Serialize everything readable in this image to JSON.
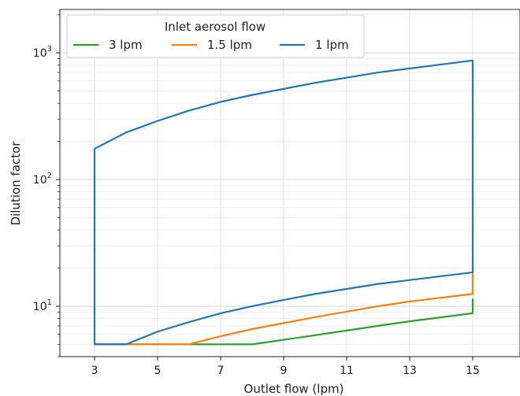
{
  "chart_data": {
    "type": "line",
    "title": "",
    "xlabel": "Outlet flow (lpm)",
    "ylabel": "Dilution factor",
    "xlim": [
      1.9,
      16.5
    ],
    "ylim": [
      4.0,
      2200
    ],
    "yscale": "log",
    "grid": true,
    "x_ticks": [
      3,
      5,
      7,
      9,
      11,
      13,
      15
    ],
    "y_ticks": [
      {
        "value": 10,
        "base": "10",
        "exp": "1"
      },
      {
        "value": 100,
        "base": "10",
        "exp": "2"
      },
      {
        "value": 1000,
        "base": "10",
        "exp": "3"
      }
    ],
    "legend": {
      "title": "Inlet aerosol flow",
      "placement": "top-left"
    },
    "series": [
      {
        "name": "3 lpm",
        "color": "#2ca02c",
        "polygon": [
          [
            3,
            5
          ],
          [
            4,
            5
          ],
          [
            5,
            5
          ],
          [
            6,
            5
          ],
          [
            7,
            5
          ],
          [
            8,
            5
          ],
          [
            10,
            5.9
          ],
          [
            12,
            7.0
          ],
          [
            13,
            7.6
          ],
          [
            15,
            8.8
          ],
          [
            15,
            11.5
          ]
        ]
      },
      {
        "name": "1.5 lpm",
        "color": "#ff7f0e",
        "polygon": [
          [
            3,
            5
          ],
          [
            4,
            5
          ],
          [
            5,
            5
          ],
          [
            6,
            5
          ],
          [
            7,
            5.8
          ],
          [
            8,
            6.6
          ],
          [
            10,
            8.2
          ],
          [
            12,
            10.0
          ],
          [
            13,
            10.9
          ],
          [
            15,
            12.5
          ],
          [
            15,
            18.5
          ]
        ]
      },
      {
        "name": "1 lpm",
        "color": "#1f77b4",
        "polygon": [
          [
            3,
            175
          ],
          [
            4,
            235
          ],
          [
            5,
            290
          ],
          [
            6,
            350
          ],
          [
            7,
            410
          ],
          [
            8,
            465
          ],
          [
            10,
            580
          ],
          [
            12,
            700
          ],
          [
            15,
            870
          ],
          [
            15,
            18.5
          ],
          [
            12,
            15.0
          ],
          [
            10,
            12.5
          ],
          [
            9,
            11.2
          ],
          [
            8,
            10.0
          ],
          [
            7,
            8.8
          ],
          [
            6,
            7.5
          ],
          [
            5,
            6.3
          ],
          [
            4,
            5.0
          ],
          [
            3,
            5.0
          ],
          [
            3,
            175
          ]
        ]
      }
    ]
  }
}
